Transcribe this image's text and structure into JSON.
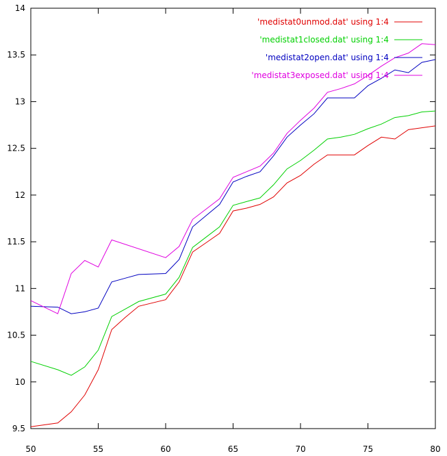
{
  "chart_data": {
    "type": "line",
    "title": "",
    "xlabel": "",
    "ylabel": "",
    "xlim": [
      50,
      80
    ],
    "ylim": [
      9.5,
      14
    ],
    "x_ticks": [
      "50",
      "55",
      "60",
      "65",
      "70",
      "75",
      "80"
    ],
    "y_ticks": [
      "9.5",
      "10",
      "10.5",
      "11",
      "11.5",
      "12",
      "12.5",
      "13",
      "13.5",
      "14"
    ],
    "grid": false,
    "legend_position": "top-right",
    "series": [
      {
        "name": "'medistat0unmod.dat' using 1:4",
        "color": "#e00000",
        "points": [
          [
            50,
            9.52
          ],
          [
            52,
            9.56
          ],
          [
            53,
            9.68
          ],
          [
            54,
            9.86
          ],
          [
            55,
            10.13
          ],
          [
            56,
            10.56
          ],
          [
            57,
            10.69
          ],
          [
            58,
            10.81
          ],
          [
            60,
            10.88
          ],
          [
            61,
            11.07
          ],
          [
            62,
            11.39
          ],
          [
            63,
            11.49
          ],
          [
            64,
            11.59
          ],
          [
            65,
            11.83
          ],
          [
            66,
            11.86
          ],
          [
            67,
            11.9
          ],
          [
            68,
            11.98
          ],
          [
            69,
            12.13
          ],
          [
            70,
            12.21
          ],
          [
            71,
            12.33
          ],
          [
            72,
            12.43
          ],
          [
            73,
            12.43
          ],
          [
            74,
            12.43
          ],
          [
            75,
            12.53
          ],
          [
            76,
            12.62
          ],
          [
            77,
            12.6
          ],
          [
            78,
            12.7
          ],
          [
            79,
            12.72
          ],
          [
            80,
            12.74
          ]
        ]
      },
      {
        "name": "'medistat1closed.dat' using 1:4",
        "color": "#00d000",
        "points": [
          [
            50,
            10.22
          ],
          [
            52,
            10.13
          ],
          [
            53,
            10.07
          ],
          [
            54,
            10.16
          ],
          [
            55,
            10.34
          ],
          [
            56,
            10.7
          ],
          [
            57,
            10.78
          ],
          [
            58,
            10.86
          ],
          [
            60,
            10.94
          ],
          [
            61,
            11.12
          ],
          [
            62,
            11.44
          ],
          [
            63,
            11.55
          ],
          [
            64,
            11.66
          ],
          [
            65,
            11.89
          ],
          [
            66,
            11.93
          ],
          [
            67,
            11.97
          ],
          [
            68,
            12.11
          ],
          [
            69,
            12.28
          ],
          [
            70,
            12.37
          ],
          [
            71,
            12.48
          ],
          [
            72,
            12.6
          ],
          [
            73,
            12.62
          ],
          [
            74,
            12.65
          ],
          [
            75,
            12.71
          ],
          [
            76,
            12.76
          ],
          [
            77,
            12.83
          ],
          [
            78,
            12.85
          ],
          [
            79,
            12.89
          ],
          [
            80,
            12.9
          ]
        ]
      },
      {
        "name": "'medistat2open.dat' using 1:4",
        "color": "#0000c0",
        "points": [
          [
            50,
            10.81
          ],
          [
            52,
            10.8
          ],
          [
            53,
            10.73
          ],
          [
            54,
            10.75
          ],
          [
            55,
            10.79
          ],
          [
            56,
            11.07
          ],
          [
            57,
            11.11
          ],
          [
            58,
            11.15
          ],
          [
            60,
            11.16
          ],
          [
            61,
            11.31
          ],
          [
            62,
            11.66
          ],
          [
            63,
            11.78
          ],
          [
            64,
            11.9
          ],
          [
            65,
            12.14
          ],
          [
            66,
            12.2
          ],
          [
            67,
            12.25
          ],
          [
            68,
            12.42
          ],
          [
            69,
            12.62
          ],
          [
            70,
            12.75
          ],
          [
            71,
            12.87
          ],
          [
            72,
            13.04
          ],
          [
            73,
            13.04
          ],
          [
            74,
            13.04
          ],
          [
            75,
            13.17
          ],
          [
            76,
            13.25
          ],
          [
            77,
            13.34
          ],
          [
            78,
            13.31
          ],
          [
            79,
            13.42
          ],
          [
            80,
            13.45
          ]
        ]
      },
      {
        "name": "'medistat3exposed.dat' using 1:4",
        "color": "#e000e0",
        "points": [
          [
            50,
            10.87
          ],
          [
            52,
            10.73
          ],
          [
            53,
            11.16
          ],
          [
            54,
            11.3
          ],
          [
            55,
            11.23
          ],
          [
            56,
            11.52
          ],
          [
            60,
            11.33
          ],
          [
            61,
            11.45
          ],
          [
            62,
            11.74
          ],
          [
            63,
            11.85
          ],
          [
            64,
            11.96
          ],
          [
            65,
            12.19
          ],
          [
            66,
            12.25
          ],
          [
            67,
            12.31
          ],
          [
            68,
            12.45
          ],
          [
            69,
            12.66
          ],
          [
            70,
            12.8
          ],
          [
            71,
            12.93
          ],
          [
            72,
            13.1
          ],
          [
            73,
            13.14
          ],
          [
            74,
            13.19
          ],
          [
            75,
            13.28
          ],
          [
            76,
            13.38
          ],
          [
            77,
            13.47
          ],
          [
            78,
            13.52
          ],
          [
            79,
            13.62
          ],
          [
            80,
            13.61
          ]
        ]
      }
    ]
  }
}
